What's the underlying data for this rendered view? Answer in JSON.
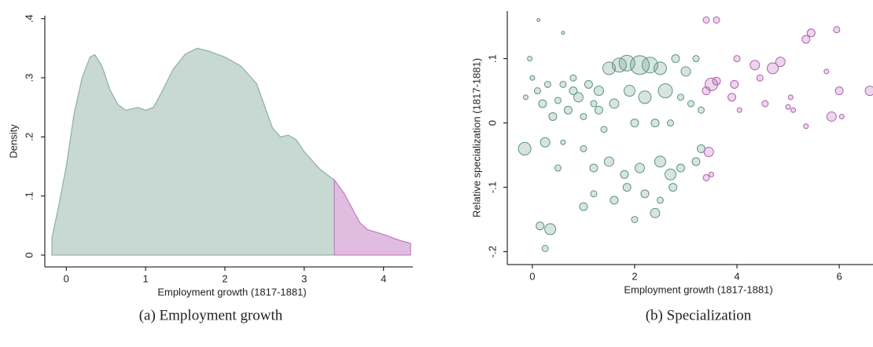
{
  "chart_data": [
    {
      "type": "area",
      "xlabel": "Employment growth (1817-1881)",
      "ylabel": "Density",
      "caption": "(a) Employment growth",
      "xlim": [
        -0.27,
        4.37
      ],
      "ylim": [
        -0.02,
        0.405
      ],
      "xticks": [
        0,
        1,
        2,
        3,
        4
      ],
      "yticks": [
        0,
        {
          "value": 0.1,
          "label": ".1"
        },
        {
          "value": 0.2,
          "label": ".2"
        },
        {
          "value": 0.3,
          "label": ".3"
        },
        {
          "value": 0.4,
          "label": ".4"
        }
      ],
      "series": [
        {
          "color": "#c8d8d3",
          "x": [
            -0.18,
            -0.1,
            0,
            0.1,
            0.2,
            0.3,
            0.36,
            0.45,
            0.55,
            0.65,
            0.75,
            0.9,
            1.0,
            1.1,
            1.2,
            1.35,
            1.5,
            1.65,
            1.8,
            2.0,
            2.2,
            2.4,
            2.6,
            2.7,
            2.8,
            2.9,
            3.0,
            3.2,
            3.38
          ],
          "values": [
            0.03,
            0.08,
            0.15,
            0.24,
            0.3,
            0.335,
            0.339,
            0.32,
            0.28,
            0.255,
            0.245,
            0.25,
            0.245,
            0.25,
            0.275,
            0.315,
            0.34,
            0.35,
            0.345,
            0.335,
            0.32,
            0.29,
            0.215,
            0.2,
            0.203,
            0.195,
            0.175,
            0.145,
            0.127
          ]
        },
        {
          "color": "#e0bde0",
          "x": [
            3.38,
            3.5,
            3.6,
            3.7,
            3.8,
            4.0,
            4.2,
            4.34
          ],
          "values": [
            0.127,
            0.105,
            0.08,
            0.055,
            0.043,
            0.035,
            0.025,
            0.02
          ]
        }
      ]
    },
    {
      "type": "scatter",
      "xlabel": "Employment growth (1817-1881)",
      "ylabel": "Relative specialization (1817-1881)",
      "caption": "(b) Specialization",
      "xlim": [
        -0.49,
        6.66
      ],
      "ylim": [
        -0.22,
        0.174
      ],
      "xticks": [
        0,
        2,
        4,
        6
      ],
      "yticks": [
        {
          "value": -0.2,
          "label": "-.2"
        },
        {
          "value": -0.1,
          "label": "-.1"
        },
        0,
        {
          "value": 0.1,
          "label": ".1"
        }
      ],
      "series": [
        {
          "color": "#5f9383",
          "x": [
            -0.13,
            -0.05,
            0.12,
            0.0,
            0.1,
            0.2,
            0.3,
            0.4,
            0.5,
            0.6,
            0.7,
            0.8,
            0.9,
            1.0,
            1.1,
            1.2,
            1.3,
            1.5,
            1.7,
            1.85,
            2.1,
            2.3,
            2.5,
            2.8,
            1.6,
            1.9,
            2.2,
            2.6,
            2.0,
            1.4,
            1.0,
            0.6,
            0.25,
            -0.15,
            0.5,
            1.2,
            1.5,
            1.8,
            2.1,
            2.5,
            2.7,
            2.9,
            3.2,
            3.3,
            1.0,
            1.2,
            1.6,
            2.0,
            2.4,
            2.5,
            0.15,
            0.35,
            0.25,
            2.9,
            3.1,
            3.3,
            2.4,
            2.7,
            1.3,
            0.8,
            3.0,
            3.2,
            0.6,
            1.85,
            2.2,
            2.75
          ],
          "values": [
            0.04,
            0.1,
            0.16,
            0.07,
            0.05,
            0.03,
            0.06,
            0.01,
            0.035,
            0.06,
            0.02,
            0.05,
            0.04,
            0.01,
            0.06,
            0.03,
            0.05,
            0.085,
            0.09,
            0.093,
            0.09,
            0.09,
            0.085,
            0.1,
            0.03,
            0.05,
            0.04,
            0.05,
            0.0,
            -0.01,
            -0.04,
            -0.03,
            -0.03,
            -0.04,
            -0.07,
            -0.07,
            -0.06,
            -0.08,
            -0.07,
            -0.06,
            -0.08,
            -0.07,
            -0.06,
            -0.04,
            -0.13,
            -0.11,
            -0.12,
            -0.15,
            -0.14,
            -0.12,
            -0.16,
            -0.165,
            -0.195,
            0.04,
            0.03,
            0.02,
            0.0,
            0.0,
            0.02,
            0.07,
            0.08,
            0.1,
            0.14,
            -0.1,
            -0.11,
            -0.1
          ],
          "sizes": [
            3,
            3,
            2,
            3,
            4,
            5,
            4,
            5,
            4,
            4,
            5,
            5,
            6,
            4,
            5,
            4,
            6,
            8,
            9,
            10,
            12,
            10,
            8,
            5,
            6,
            7,
            8,
            9,
            5,
            4,
            4,
            3,
            6,
            8,
            4,
            5,
            6,
            5,
            6,
            7,
            7,
            5,
            5,
            5,
            5,
            4,
            5,
            4,
            6,
            4,
            5,
            7,
            4,
            4,
            4,
            4,
            5,
            4,
            5,
            4,
            6,
            4,
            2,
            5,
            5,
            5
          ]
        },
        {
          "color": "#b060b0",
          "x": [
            3.4,
            3.6,
            3.4,
            3.5,
            3.6,
            3.45,
            3.4,
            3.5,
            3.9,
            3.95,
            4.0,
            4.05,
            4.35,
            4.45,
            4.55,
            4.7,
            4.85,
            5.05,
            5.1,
            5.35,
            5.45,
            5.35,
            5.85,
            5.95,
            6.0,
            6.05,
            5.75,
            6.6,
            5.0
          ],
          "values": [
            0.16,
            0.16,
            0.05,
            0.06,
            0.065,
            -0.045,
            -0.085,
            -0.08,
            0.04,
            0.06,
            0.1,
            0.02,
            0.09,
            0.07,
            0.03,
            0.085,
            0.095,
            0.04,
            0.02,
            0.13,
            0.14,
            -0.005,
            0.01,
            0.145,
            0.05,
            0.01,
            0.08,
            0.05,
            0.025
          ],
          "sizes": [
            4,
            4,
            5,
            8,
            5,
            6,
            4,
            3,
            5,
            5,
            4,
            3,
            6,
            4,
            4,
            7,
            6,
            3,
            3,
            5,
            5,
            3,
            6,
            4,
            5,
            3,
            3,
            6,
            3
          ]
        }
      ]
    }
  ]
}
